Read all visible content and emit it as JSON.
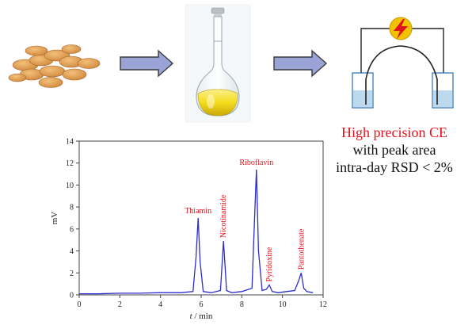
{
  "caption": {
    "line1": "High precision CE",
    "line2": "with peak area",
    "line3": "intra-day RSD < 2%"
  },
  "colors": {
    "arrow_fill": "#9aa3d6",
    "arrow_stroke": "#3a3a3a",
    "tablet": "#d99a4a",
    "flask_liquid": "#f3dc1c",
    "electro_trace": "#2c2cd0",
    "highlight_text": "#e0141e",
    "lightning_bolt": "#f2c200",
    "buffer_blue": "#bcd9ee"
  },
  "icons": [
    "tablets-icon",
    "arrow-right-icon",
    "volumetric-flask-icon",
    "arrow-right-icon",
    "ce-setup-icon",
    "lightning-icon"
  ],
  "chart_data": {
    "type": "line",
    "xlabel": "t / min",
    "ylabel": "mV",
    "xlim": [
      0,
      12
    ],
    "ylim": [
      0,
      14
    ],
    "xticks": [
      0,
      2,
      4,
      6,
      8,
      10,
      12
    ],
    "yticks": [
      0,
      2,
      4,
      6,
      8,
      10,
      12,
      14
    ],
    "grid": false,
    "series": [
      {
        "x": [
          0.0,
          1.0,
          2.0,
          3.0,
          4.0,
          5.0,
          5.6,
          5.75,
          5.85,
          5.95,
          6.1,
          6.5,
          6.95,
          7.1,
          7.25,
          7.5,
          8.0,
          8.5,
          8.62,
          8.72,
          8.82,
          9.0,
          9.2,
          9.35,
          9.5,
          9.8,
          10.2,
          10.6,
          10.8,
          10.92,
          11.05,
          11.2,
          11.5
        ],
        "y": [
          0.1,
          0.1,
          0.15,
          0.15,
          0.2,
          0.2,
          0.3,
          3.5,
          7.0,
          3.0,
          0.3,
          0.2,
          0.4,
          4.9,
          0.4,
          0.2,
          0.3,
          0.6,
          6.5,
          11.4,
          4.0,
          0.4,
          0.5,
          0.9,
          0.3,
          0.2,
          0.3,
          0.4,
          1.3,
          2.0,
          0.6,
          0.3,
          0.2
        ]
      }
    ],
    "annotations": [
      {
        "label": "Thiamin",
        "x": 5.85,
        "y": 7.0
      },
      {
        "label": "Nicotinamide",
        "x": 7.1,
        "y": 4.9
      },
      {
        "label": "Riboflavin",
        "x": 8.72,
        "y": 11.4
      },
      {
        "label": "Pyridoxine",
        "x": 9.35,
        "y": 0.9
      },
      {
        "label": "Pantothenate",
        "x": 10.92,
        "y": 2.0
      }
    ]
  }
}
